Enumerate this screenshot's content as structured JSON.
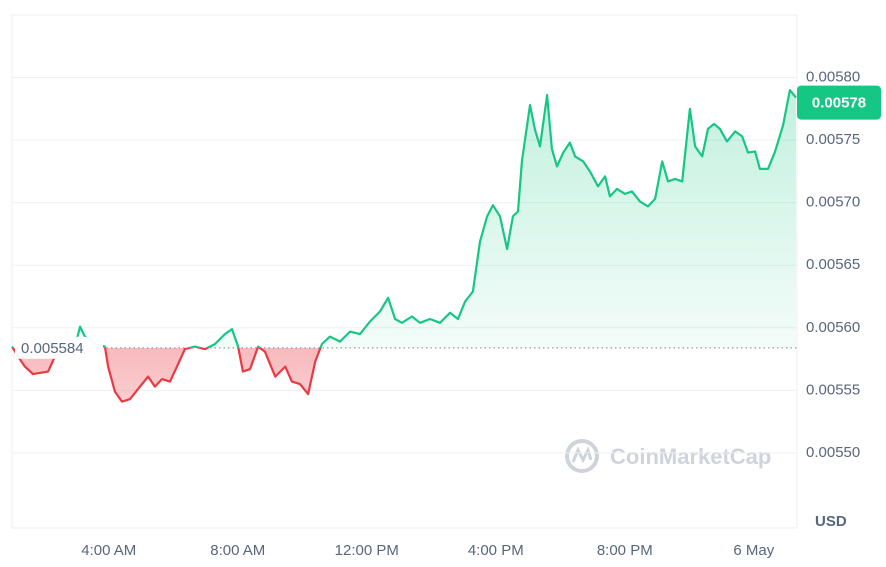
{
  "chart_data": {
    "type": "line",
    "x": [
      1.0,
      1.19,
      1.4,
      1.65,
      2.12,
      2.33,
      2.95,
      3.11,
      3.26,
      3.57,
      3.88,
      3.98,
      4.19,
      4.41,
      4.66,
      4.97,
      5.22,
      5.43,
      5.65,
      5.9,
      6.15,
      6.36,
      6.67,
      6.98,
      7.29,
      7.6,
      7.82,
      8.01,
      8.16,
      8.38,
      8.63,
      8.84,
      9.16,
      9.47,
      9.68,
      9.93,
      10.18,
      10.4,
      10.61,
      10.86,
      11.17,
      11.48,
      11.79,
      12.1,
      12.41,
      12.66,
      12.88,
      13.09,
      13.4,
      13.65,
      13.96,
      14.27,
      14.58,
      14.83,
      15.05,
      15.29,
      15.51,
      15.73,
      15.91,
      16.13,
      16.35,
      16.53,
      16.69,
      16.81,
      17.06,
      17.22,
      17.37,
      17.59,
      17.74,
      17.9,
      18.09,
      18.3,
      18.46,
      18.71,
      18.92,
      19.17,
      19.39,
      19.54,
      19.76,
      20.01,
      20.22,
      20.47,
      20.72,
      20.94,
      21.16,
      21.34,
      21.56,
      21.78,
      22.02,
      22.18,
      22.4,
      22.58,
      22.77,
      22.95,
      23.17,
      23.42,
      23.64,
      23.82,
      24.04,
      24.19,
      24.44,
      24.66,
      24.91,
      25.12,
      25.31
    ],
    "values": [
      0.005585,
      0.005577,
      0.005569,
      0.005563,
      0.005565,
      0.005577,
      0.005585,
      0.005601,
      0.005593,
      0.005587,
      0.005585,
      0.005569,
      0.005549,
      0.005541,
      0.005543,
      0.005553,
      0.005561,
      0.005553,
      0.005559,
      0.005557,
      0.005571,
      0.005583,
      0.005585,
      0.005583,
      0.005587,
      0.005595,
      0.005599,
      0.005585,
      0.005565,
      0.005567,
      0.005585,
      0.005581,
      0.005561,
      0.005569,
      0.005557,
      0.005555,
      0.005547,
      0.005573,
      0.005587,
      0.005593,
      0.005589,
      0.005597,
      0.005595,
      0.005605,
      0.005613,
      0.005624,
      0.005607,
      0.005604,
      0.005609,
      0.005604,
      0.005607,
      0.005604,
      0.005612,
      0.005607,
      0.005621,
      0.005629,
      0.005669,
      0.005689,
      0.005698,
      0.005689,
      0.005663,
      0.005689,
      0.005693,
      0.005733,
      0.005778,
      0.005758,
      0.005745,
      0.005786,
      0.005743,
      0.005729,
      0.00574,
      0.005748,
      0.005737,
      0.005733,
      0.005725,
      0.005713,
      0.005721,
      0.005705,
      0.005711,
      0.005707,
      0.005709,
      0.005701,
      0.005697,
      0.005703,
      0.005733,
      0.005717,
      0.005719,
      0.005717,
      0.005775,
      0.005745,
      0.005737,
      0.005759,
      0.005763,
      0.005759,
      0.005749,
      0.005757,
      0.005753,
      0.00574,
      0.005741,
      0.005727,
      0.005727,
      0.005741,
      0.005762,
      0.00579,
      0.005784
    ],
    "color_up": "#16c784",
    "color_down": "#ea3943",
    "baseline": 0.005584,
    "current_price": 0.00578,
    "xlim": [
      1,
      25.34
    ],
    "xticks": [
      {
        "value": 4,
        "label": "4:00 AM"
      },
      {
        "value": 8,
        "label": "8:00 AM"
      },
      {
        "value": 12,
        "label": "12:00 PM"
      },
      {
        "value": 16,
        "label": "4:00 PM"
      },
      {
        "value": 20,
        "label": "8:00 PM"
      },
      {
        "value": 24,
        "label": "6 May"
      }
    ],
    "ylim": [
      0.00544,
      0.00585
    ],
    "yticks": [
      {
        "value": 0.0055,
        "label": "0.00550"
      },
      {
        "value": 0.00555,
        "label": "0.00555"
      },
      {
        "value": 0.0056,
        "label": "0.00560"
      },
      {
        "value": 0.00565,
        "label": "0.00565"
      },
      {
        "value": 0.0057,
        "label": "0.00570"
      },
      {
        "value": 0.00575,
        "label": "0.00575"
      },
      {
        "value": 0.0058,
        "label": "0.00580"
      }
    ],
    "grid": true,
    "currency": "USD",
    "watermark": "CoinMarketCap"
  }
}
